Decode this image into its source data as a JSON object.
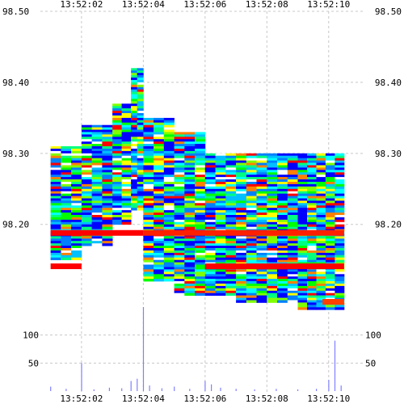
{
  "chart_data": [
    {
      "type": "heatmap",
      "title": "",
      "xlabel": "",
      "ylabel": "",
      "x_ticks": [
        "13:52:02",
        "13:52:04",
        "13:52:06",
        "13:52:08",
        "13:52:10"
      ],
      "y_ticks": [
        "98.50",
        "98.40",
        "98.30",
        "98.20"
      ],
      "ylim": [
        98.07,
        98.5
      ],
      "xlim": [
        "13:52:00.8",
        "13:52:11.0"
      ],
      "grid": true,
      "colorscale": [
        "#0000ff",
        "#0080ff",
        "#00c0ff",
        "#00ffff",
        "#00ff80",
        "#00ff00",
        "#80ff00",
        "#ffff00",
        "#ff8000",
        "#ff0000"
      ],
      "band_columns": [
        {
          "x_start": "13:52:01.0",
          "x_end": "13:52:02.0",
          "top": 98.31,
          "bottom": 98.16
        },
        {
          "x_start": "13:52:02.0",
          "x_end": "13:52:03.0",
          "top": 98.34,
          "bottom": 98.18
        },
        {
          "x_start": "13:52:03.0",
          "x_end": "13:52:03.6",
          "top": 98.37,
          "bottom": 98.21
        },
        {
          "x_start": "13:52:03.6",
          "x_end": "13:52:04.0",
          "top": 98.42,
          "bottom": 98.23
        },
        {
          "x_start": "13:52:04.0",
          "x_end": "13:52:05.0",
          "top": 98.35,
          "bottom": 98.13
        },
        {
          "x_start": "13:52:05.0",
          "x_end": "13:52:06.0",
          "top": 98.33,
          "bottom": 98.11
        },
        {
          "x_start": "13:52:06.0",
          "x_end": "13:52:07.0",
          "top": 98.3,
          "bottom": 98.11
        },
        {
          "x_start": "13:52:07.0",
          "x_end": "13:52:08.0",
          "top": 98.3,
          "bottom": 98.1
        },
        {
          "x_start": "13:52:08.0",
          "x_end": "13:52:09.0",
          "top": 98.3,
          "bottom": 98.1
        },
        {
          "x_start": "13:52:09.0",
          "x_end": "13:52:10.5",
          "top": 98.3,
          "bottom": 98.09
        }
      ],
      "band_tick_step": 0.01
    },
    {
      "type": "bar",
      "title": "",
      "xlabel": "",
      "ylabel": "",
      "x_ticks": [
        "13:52:02",
        "13:52:04",
        "13:52:06",
        "13:52:08",
        "13:52:10"
      ],
      "y_ticks": [
        100,
        50
      ],
      "ylim": [
        0,
        150
      ],
      "grid": true,
      "bar_color": "#8080ff",
      "bars": [
        {
          "t": "13:52:01.0",
          "value": 8
        },
        {
          "t": "13:52:01.5",
          "value": 4
        },
        {
          "t": "13:52:02.0",
          "value": 50
        },
        {
          "t": "13:52:02.4",
          "value": 3
        },
        {
          "t": "13:52:02.9",
          "value": 6
        },
        {
          "t": "13:52:03.3",
          "value": 5
        },
        {
          "t": "13:52:03.6",
          "value": 18
        },
        {
          "t": "13:52:03.8",
          "value": 22
        },
        {
          "t": "13:52:04.0",
          "value": 150
        },
        {
          "t": "13:52:04.2",
          "value": 10
        },
        {
          "t": "13:52:04.6",
          "value": 5
        },
        {
          "t": "13:52:05.0",
          "value": 8
        },
        {
          "t": "13:52:05.5",
          "value": 4
        },
        {
          "t": "13:52:06.0",
          "value": 18
        },
        {
          "t": "13:52:06.2",
          "value": 12
        },
        {
          "t": "13:52:06.5",
          "value": 6
        },
        {
          "t": "13:52:07.0",
          "value": 4
        },
        {
          "t": "13:52:07.6",
          "value": 3
        },
        {
          "t": "13:52:08.3",
          "value": 4
        },
        {
          "t": "13:52:09.0",
          "value": 3
        },
        {
          "t": "13:52:09.6",
          "value": 4
        },
        {
          "t": "13:52:10.0",
          "value": 20
        },
        {
          "t": "13:52:10.2",
          "value": 90
        },
        {
          "t": "13:52:10.4",
          "value": 10
        }
      ]
    }
  ]
}
